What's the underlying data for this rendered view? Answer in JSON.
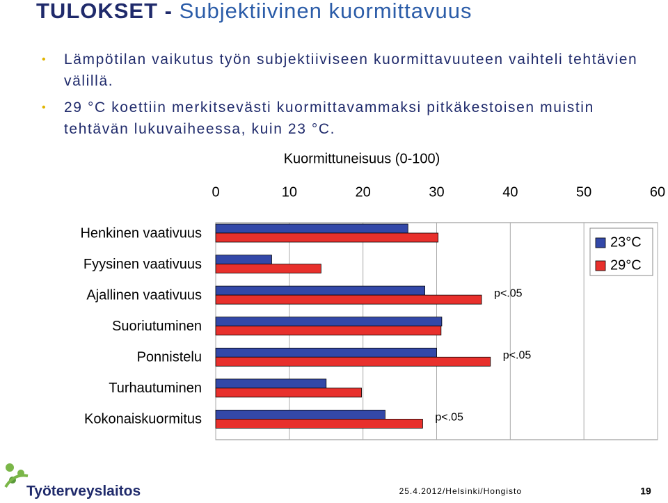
{
  "header": {
    "title_lead": "TULOKSET -",
    "title": "Subjektiivinen kuormittavuus"
  },
  "bullets": [
    "Lämpötilan vaikutus työn subjektiiviseen kuormittavuuteen vaihteli tehtävien välillä.",
    "29 °C koettiin merkitsevästi kuormittavammaksi pitkäkestoisen muistin tehtävän lukuvaiheessa, kuin 23 °C."
  ],
  "chart_data": {
    "type": "hbar",
    "title": "Kuormittuneisuus (0-100)",
    "categories": [
      "Henkinen vaativuus",
      "Fyysinen vaativuus",
      "Ajallinen vaativuus",
      "Suoriutuminen",
      "Ponnistelu",
      "Turhautuminen",
      "Kokonaiskuormitus"
    ],
    "series": [
      {
        "name": "23°C",
        "color": "#3348a8",
        "values": [
          26.1,
          7.6,
          28.4,
          30.7,
          30.0,
          15.0,
          23.0
        ]
      },
      {
        "name": "29°C",
        "color": "#e8302c",
        "values": [
          30.2,
          14.3,
          36.1,
          30.6,
          37.3,
          19.8,
          28.1
        ]
      }
    ],
    "annotations": [
      null,
      null,
      "p<.05",
      null,
      "p<.05",
      null,
      "p<.05"
    ],
    "xlim": [
      0,
      60
    ],
    "xticks": [
      0,
      10,
      20,
      30,
      40,
      50,
      60
    ],
    "grid": true,
    "legend": "top-right"
  },
  "footer": {
    "org": "Työterveyslaitos",
    "info": "25.4.2012/Helsinki/Hongisto",
    "page": "19"
  }
}
